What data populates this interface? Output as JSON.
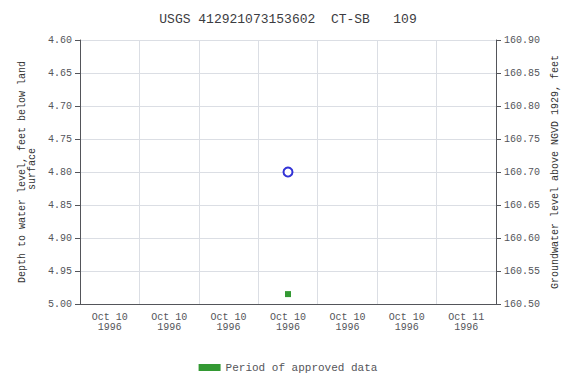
{
  "chart_data": {
    "type": "scatter",
    "title": "USGS 412921073153602  CT-SB   109",
    "ylabel": "Depth to water level, feet below land\n surface",
    "y2label": "Groundwater level above NGVD 1929, feet",
    "categories": [
      "Oct 10\n1996",
      "Oct 10\n1996",
      "Oct 10\n1996",
      "Oct 10\n1996",
      "Oct 10\n1996",
      "Oct 10\n1996",
      "Oct 11\n1996"
    ],
    "series": [
      {
        "color": "#0000cc",
        "marker": "circle_open",
        "values": [
          null,
          null,
          null,
          4.8,
          null,
          null,
          null
        ]
      },
      {
        "name": "Period of approved data",
        "color": "#008000",
        "marker": "square",
        "values": [
          null,
          null,
          null,
          4.985,
          null,
          null,
          null
        ]
      }
    ],
    "ylim": [
      5.0,
      4.6
    ],
    "yticks": [
      {
        "value": 4.6,
        "label": "4.60"
      },
      {
        "value": 4.65,
        "label": "4.65"
      },
      {
        "value": 4.7,
        "label": "4.70"
      },
      {
        "value": 4.75,
        "label": "4.75"
      },
      {
        "value": 4.8,
        "label": "4.80"
      },
      {
        "value": 4.85,
        "label": "4.85"
      },
      {
        "value": 4.9,
        "label": "4.90"
      },
      {
        "value": 4.95,
        "label": "4.95"
      },
      {
        "value": 5.0,
        "label": "5.00"
      }
    ],
    "y2lim": [
      160.5,
      160.9
    ],
    "y2ticks": [
      {
        "value": 160.5,
        "label": "160.50"
      },
      {
        "value": 160.55,
        "label": "160.55"
      },
      {
        "value": 160.6,
        "label": "160.60"
      },
      {
        "value": 160.65,
        "label": "160.65"
      },
      {
        "value": 160.7,
        "label": "160.70"
      },
      {
        "value": 160.75,
        "label": "160.75"
      },
      {
        "value": 160.8,
        "label": "160.80"
      },
      {
        "value": 160.85,
        "label": "160.85"
      },
      {
        "value": 160.9,
        "label": "160.90"
      }
    ],
    "grid": true,
    "legend": "bottom"
  }
}
